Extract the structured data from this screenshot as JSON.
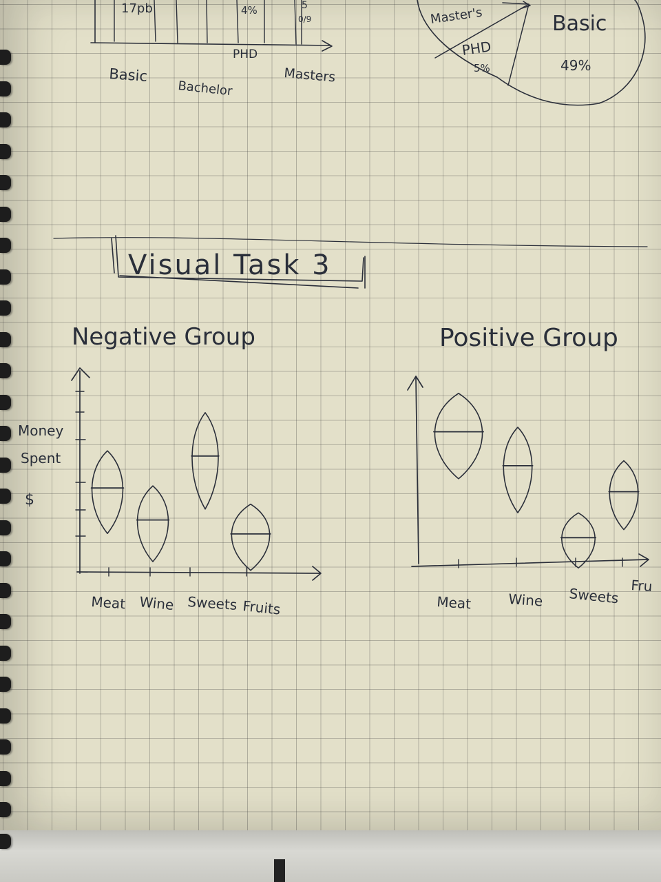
{
  "top_bar_sketch": {
    "values": [
      "17pb",
      "4%",
      "5",
      "0/9"
    ],
    "categories": [
      "Basic",
      "Bachelor",
      "PHD",
      "Masters"
    ]
  },
  "top_pie_sketch": {
    "slices": [
      {
        "label": "Master's",
        "value": ""
      },
      {
        "label": "PHD",
        "value": "5%"
      },
      {
        "label": "Basic",
        "value": "49%"
      }
    ]
  },
  "banner": {
    "title": "Visual Task 3"
  },
  "chart_data": [
    {
      "type": "violin",
      "title": "Negative Group",
      "ylabel": "Money Spent $",
      "categories": [
        "Meat",
        "Wine",
        "Sweets",
        "Fruits"
      ],
      "medians": [
        0.42,
        0.26,
        0.58,
        0.19
      ]
    },
    {
      "type": "violin",
      "title": "Positive Group",
      "categories": [
        "Meat",
        "Wine",
        "Sweets",
        "Fru"
      ],
      "medians": [
        0.66,
        0.49,
        0.13,
        0.36
      ]
    }
  ]
}
